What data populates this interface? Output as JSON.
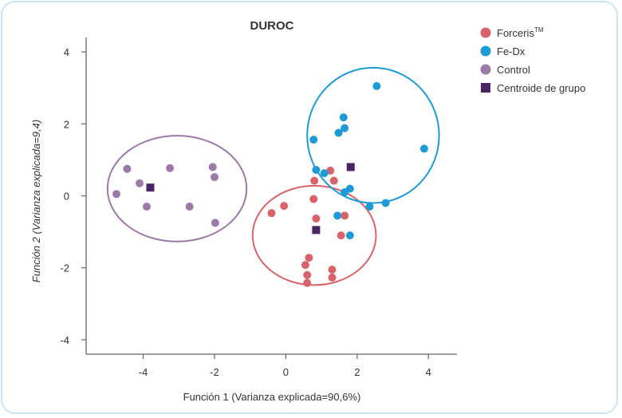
{
  "chart_data": {
    "type": "scatter",
    "title": "DUROC",
    "xlabel": "Función 1 (Varianza explicada=90,6%)",
    "ylabel": "Función 2 (Varianza explicada=9,4)",
    "xlim": [
      -5.6,
      4.8
    ],
    "ylim": [
      -4.4,
      4.4
    ],
    "xticks": [
      -4,
      -2,
      0,
      2,
      4
    ],
    "yticks": [
      4,
      2,
      0,
      -2,
      -4
    ],
    "xtick_labels": [
      "-4",
      "-2",
      "0",
      "2",
      "4"
    ],
    "ytick_labels": [
      "4",
      "2",
      "0",
      "-2",
      "-4"
    ],
    "series": [
      {
        "name": "Forceris",
        "name_sup": "TM",
        "color": "#d9636a",
        "marker": "circle",
        "points": [
          [
            -0.4,
            -0.48
          ],
          [
            -0.05,
            -0.28
          ],
          [
            0.8,
            0.42
          ],
          [
            0.78,
            -0.09
          ],
          [
            0.85,
            -0.63
          ],
          [
            1.25,
            0.7
          ],
          [
            1.35,
            0.42
          ],
          [
            1.65,
            -0.55
          ],
          [
            1.55,
            -1.1
          ],
          [
            0.65,
            -1.72
          ],
          [
            0.55,
            -1.92
          ],
          [
            0.6,
            -2.2
          ],
          [
            0.6,
            -2.42
          ],
          [
            1.3,
            -2.05
          ],
          [
            1.3,
            -2.27
          ]
        ]
      },
      {
        "name": "Fe-Dx",
        "name_sup": "",
        "color": "#1e9bd7",
        "marker": "circle",
        "points": [
          [
            2.55,
            3.05
          ],
          [
            1.62,
            2.18
          ],
          [
            1.65,
            1.88
          ],
          [
            1.48,
            1.75
          ],
          [
            0.78,
            1.56
          ],
          [
            3.88,
            1.31
          ],
          [
            0.85,
            0.72
          ],
          [
            1.08,
            0.63
          ],
          [
            1.8,
            0.2
          ],
          [
            1.65,
            0.1
          ],
          [
            2.8,
            -0.2
          ],
          [
            2.35,
            -0.3
          ],
          [
            1.45,
            -0.55
          ],
          [
            1.8,
            -1.1
          ]
        ]
      },
      {
        "name": "Control",
        "name_sup": "",
        "color": "#9c7aa8",
        "marker": "circle",
        "points": [
          [
            -4.45,
            0.75
          ],
          [
            -3.25,
            0.77
          ],
          [
            -2.05,
            0.8
          ],
          [
            -2.0,
            0.52
          ],
          [
            -4.1,
            0.35
          ],
          [
            -4.75,
            0.05
          ],
          [
            -3.9,
            -0.3
          ],
          [
            -2.7,
            -0.3
          ],
          [
            -1.98,
            -0.75
          ]
        ]
      },
      {
        "name": "Centroide de grupo",
        "name_sup": "",
        "color": "#4b2466",
        "marker": "square",
        "points": [
          [
            -3.8,
            0.23
          ],
          [
            0.85,
            -0.95
          ],
          [
            1.82,
            0.8
          ]
        ]
      }
    ],
    "ellipses": [
      {
        "group": "Forceris",
        "cx": 0.8,
        "cy": -1.1,
        "rx": 1.73,
        "ry": 1.38,
        "color": "#d9636a"
      },
      {
        "group": "Fe-Dx",
        "cx": 2.45,
        "cy": 1.68,
        "rx": 1.85,
        "ry": 1.88,
        "color": "#1e9bd7"
      },
      {
        "group": "Control",
        "cx": -3.05,
        "cy": 0.2,
        "rx": 1.95,
        "ry": 1.47,
        "color": "#9c7aa8"
      }
    ],
    "legend_position": "top-right"
  }
}
